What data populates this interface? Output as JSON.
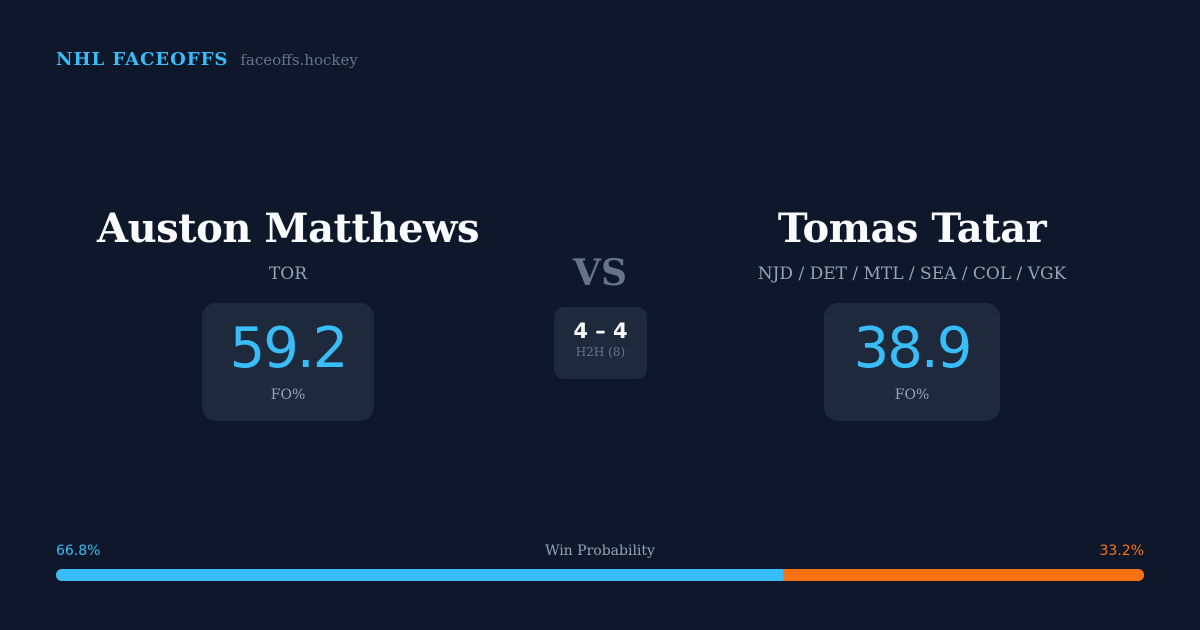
{
  "brand": {
    "title": "NHL FACEOFFS",
    "domain": "faceoffs.hockey"
  },
  "player1": {
    "name": "Auston Matthews",
    "teams": "TOR",
    "fo_pct": "59.2",
    "fo_label": "FO%"
  },
  "player2": {
    "name": "Tomas Tatar",
    "teams": "NJD / DET / MTL / SEA / COL / VGK",
    "fo_pct": "38.9",
    "fo_label": "FO%"
  },
  "versus": {
    "label": "VS",
    "score": "4 – 4",
    "h2h": "H2H (8)"
  },
  "win_probability": {
    "label": "Win Probability",
    "player1": "66.8%",
    "player2": "33.2%",
    "player1_value": 66.8
  },
  "colors": {
    "player1": "#38bdf8",
    "player2": "#f97316",
    "background": "#0f172a"
  }
}
